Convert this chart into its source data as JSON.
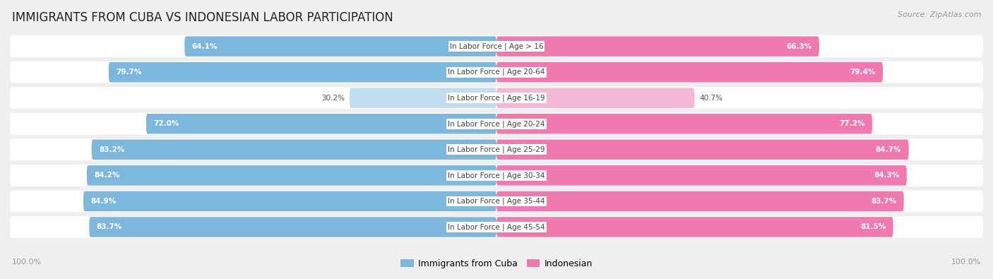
{
  "title": "IMMIGRANTS FROM CUBA VS INDONESIAN LABOR PARTICIPATION",
  "source": "Source: ZipAtlas.com",
  "categories": [
    "In Labor Force | Age > 16",
    "In Labor Force | Age 20-64",
    "In Labor Force | Age 16-19",
    "In Labor Force | Age 20-24",
    "In Labor Force | Age 25-29",
    "In Labor Force | Age 30-34",
    "In Labor Force | Age 35-44",
    "In Labor Force | Age 45-54"
  ],
  "cuba_values": [
    64.1,
    79.7,
    30.2,
    72.0,
    83.2,
    84.2,
    84.9,
    83.7
  ],
  "indonesia_values": [
    66.3,
    79.4,
    40.7,
    77.2,
    84.7,
    84.3,
    83.7,
    81.5
  ],
  "cuba_color": "#7cb8de",
  "cuba_color_light": "#c2ddf0",
  "indonesia_color": "#f07ab0",
  "indonesia_color_light": "#f5b8d4",
  "max_value": 100.0,
  "bg_color": "#efefef",
  "row_bg_color": "#ffffff",
  "title_fontsize": 12,
  "label_fontsize": 7.5,
  "value_fontsize": 7.5,
  "legend_fontsize": 9,
  "footer_fontsize": 8
}
